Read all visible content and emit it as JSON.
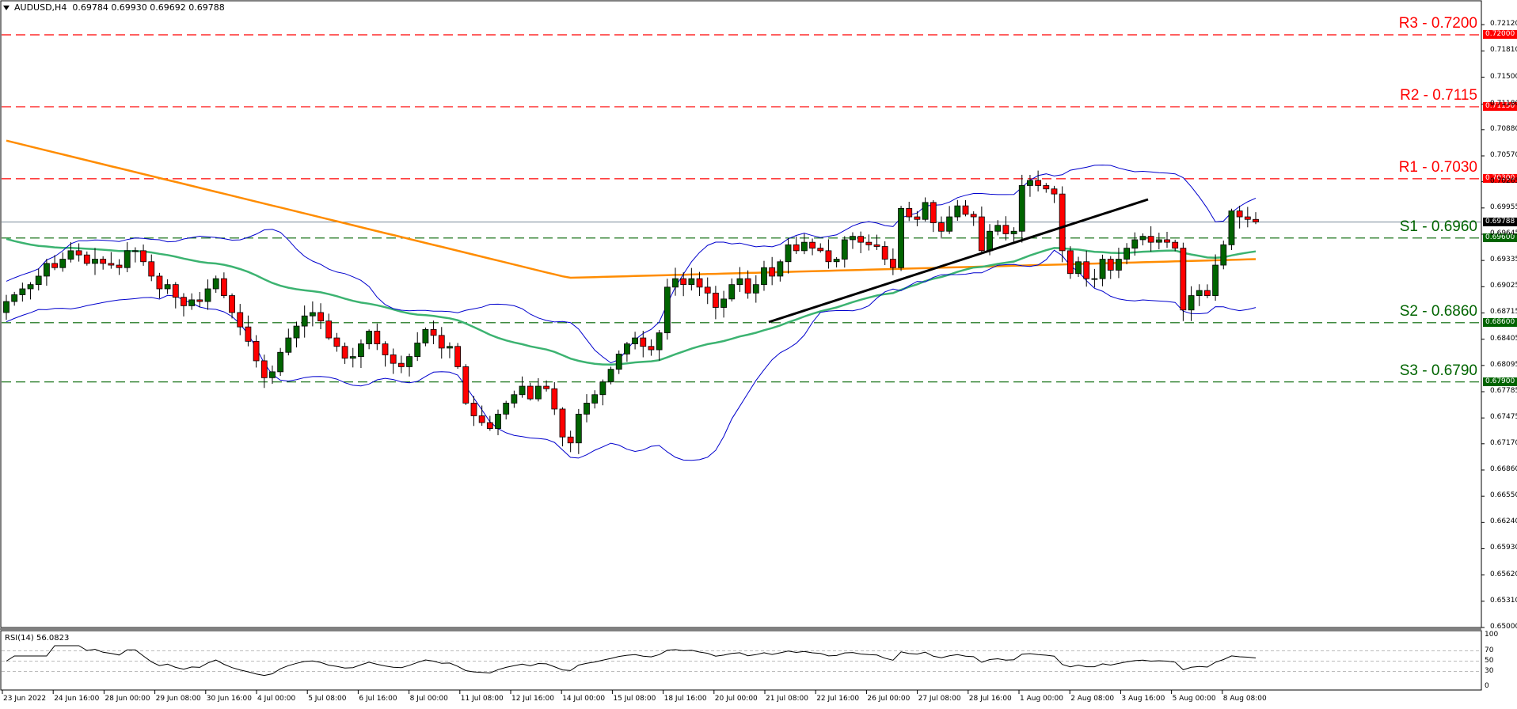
{
  "header": {
    "symbol": "AUDUSD,H4",
    "ohlc": "0.69784 0.69930 0.69692 0.69788"
  },
  "rsi_panel": {
    "label": "RSI(14) 56.0823",
    "levels": [
      "100",
      "70",
      "50",
      "30",
      "0"
    ]
  },
  "levels": [
    {
      "name": "R3",
      "label": "R3 - 0.7200",
      "price": 0.72,
      "tag": "0.72000",
      "color": "#ff0000"
    },
    {
      "name": "R2",
      "label": "R2 - 0.7115",
      "price": 0.7115,
      "tag": "0.71150",
      "color": "#ff0000"
    },
    {
      "name": "R1",
      "label": "R1 - 0.7030",
      "price": 0.703,
      "tag": "0.70300",
      "color": "#ff0000"
    },
    {
      "name": "S1",
      "label": "S1 - 0.6960",
      "price": 0.696,
      "tag": "0.69600",
      "color": "#006400"
    },
    {
      "name": "S2",
      "label": "S2 - 0.6860",
      "price": 0.686,
      "tag": "0.68600",
      "color": "#006400"
    },
    {
      "name": "S3",
      "label": "S3 - 0.6790",
      "price": 0.679,
      "tag": "0.67900",
      "color": "#006400"
    }
  ],
  "current_price": {
    "value": 0.69788,
    "tag": "0.69788"
  },
  "price_axis": [
    "0.72120",
    "0.71810",
    "0.71500",
    "0.71180",
    "0.70880",
    "0.70570",
    "0.70265",
    "0.69955",
    "0.69645",
    "0.69335",
    "0.69025",
    "0.68715",
    "0.68405",
    "0.68095",
    "0.67785",
    "0.67475",
    "0.67170",
    "0.66860",
    "0.66550",
    "0.66240",
    "0.65930",
    "0.65620",
    "0.65310",
    "0.65000"
  ],
  "time_axis": [
    "23 Jun 2022",
    "24 Jun 16:00",
    "28 Jun 00:00",
    "29 Jun 08:00",
    "30 Jun 16:00",
    "4 Jul 00:00",
    "5 Jul 08:00",
    "6 Jul 16:00",
    "8 Jul 00:00",
    "11 Jul 08:00",
    "12 Jul 16:00",
    "14 Jul 00:00",
    "15 Jul 08:00",
    "18 Jul 16:00",
    "20 Jul 00:00",
    "21 Jul 08:00",
    "22 Jul 16:00",
    "26 Jul 00:00",
    "27 Jul 08:00",
    "28 Jul 16:00",
    "1 Aug 00:00",
    "2 Aug 08:00",
    "3 Aug 16:00",
    "5 Aug 00:00",
    "8 Aug 08:00"
  ],
  "colors": {
    "bull": "#006400",
    "bear": "#ff0000",
    "bollinger": "#0000cd",
    "ema_mid": "#3cb371",
    "ema_long": "#ff8c00",
    "trendline": "#000000",
    "price_line": "#778899"
  },
  "chart_data": {
    "type": "candlestick",
    "title": "AUDUSD,H4",
    "xlabel": "",
    "ylabel": "",
    "ylim": [
      0.65,
      0.7212
    ],
    "x_range": [
      "23 Jun 2022",
      "8 Aug 2022 08:00"
    ],
    "support_resistance": {
      "R3": 0.72,
      "R2": 0.7115,
      "R1": 0.703,
      "S1": 0.696,
      "S2": 0.686,
      "S3": 0.679
    },
    "last_close": 0.69788,
    "candles_approx_close": [
      0.6885,
      0.6893,
      0.69,
      0.6905,
      0.6915,
      0.693,
      0.6925,
      0.6935,
      0.6945,
      0.694,
      0.693,
      0.6935,
      0.693,
      0.6928,
      0.6925,
      0.6945,
      0.6945,
      0.6932,
      0.6915,
      0.69,
      0.6905,
      0.689,
      0.688,
      0.6887,
      0.6885,
      0.69,
      0.6912,
      0.6892,
      0.6872,
      0.6855,
      0.6838,
      0.6815,
      0.6795,
      0.6802,
      0.6825,
      0.6842,
      0.6856,
      0.6868,
      0.6872,
      0.6862,
      0.6842,
      0.6832,
      0.6818,
      0.682,
      0.6835,
      0.685,
      0.6835,
      0.6822,
      0.6812,
      0.6808,
      0.682,
      0.6836,
      0.6852,
      0.6845,
      0.683,
      0.6832,
      0.6808,
      0.6765,
      0.675,
      0.6742,
      0.6735,
      0.6752,
      0.6765,
      0.6775,
      0.6785,
      0.677,
      0.6785,
      0.6782,
      0.6758,
      0.6725,
      0.6718,
      0.6752,
      0.6765,
      0.6775,
      0.679,
      0.6805,
      0.6823,
      0.6835,
      0.6842,
      0.6832,
      0.6828,
      0.6848,
      0.6902,
      0.6912,
      0.6905,
      0.6912,
      0.6902,
      0.6895,
      0.6878,
      0.6888,
      0.6905,
      0.6912,
      0.6895,
      0.6905,
      0.6925,
      0.6915,
      0.6932,
      0.6952,
      0.6945,
      0.6955,
      0.6948,
      0.6945,
      0.6932,
      0.6935,
      0.6958,
      0.6962,
      0.6955,
      0.6952,
      0.695,
      0.6935,
      0.6925,
      0.6995,
      0.6985,
      0.6982,
      0.7002,
      0.6978,
      0.6968,
      0.6985,
      0.6998,
      0.6988,
      0.6985,
      0.6945,
      0.6968,
      0.6975,
      0.6965,
      0.6968,
      0.7022,
      0.7028,
      0.7022,
      0.7018,
      0.7012,
      0.6945,
      0.6918,
      0.6932,
      0.6912,
      0.6912,
      0.6935,
      0.6922,
      0.6935,
      0.6948,
      0.6958,
      0.6962,
      0.6955,
      0.6958,
      0.6955,
      0.6948,
      0.6875,
      0.6892,
      0.6898,
      0.6892,
      0.6928,
      0.6952,
      0.6992,
      0.6985,
      0.6982,
      0.6979
    ],
    "indicators": [
      {
        "name": "Bollinger Bands",
        "color": "#0000cd"
      },
      {
        "name": "EMA (mid)",
        "color": "#3cb371"
      },
      {
        "name": "EMA (long)",
        "color": "#ff8c00"
      },
      {
        "name": "Trendline",
        "from": [
          0.6862,
          "21 Jul 08:00"
        ],
        "to": [
          0.7007,
          "3 Aug 16:00"
        ]
      }
    ],
    "rsi": {
      "period": 14,
      "last": 56.0823,
      "levels": [
        30,
        50,
        70
      ],
      "range": [
        0,
        100
      ]
    }
  }
}
